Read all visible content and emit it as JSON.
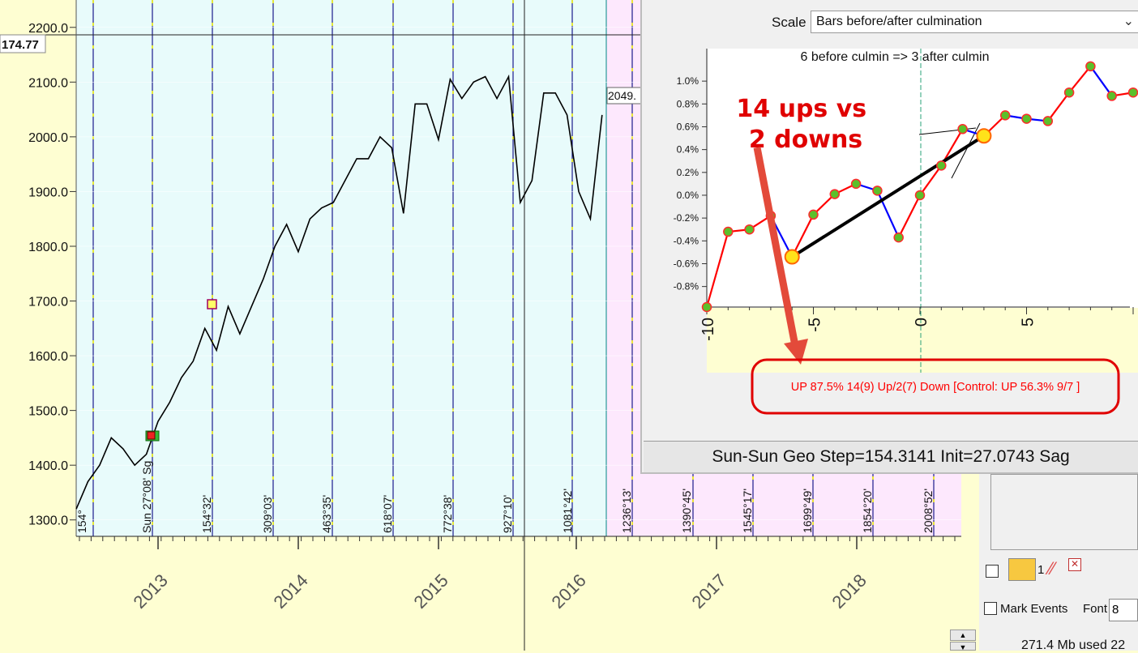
{
  "chart_data": [
    {
      "type": "line",
      "series": [
        {
          "values": [
            {
              "x": "2012-06",
              "y": 1320
            },
            {
              "x": "2012-07",
              "y": 1370
            },
            {
              "x": "2012-08",
              "y": 1400
            },
            {
              "x": "2012-09",
              "y": 1450
            },
            {
              "x": "2012-10",
              "y": 1430
            },
            {
              "x": "2012-11",
              "y": 1400
            },
            {
              "x": "2012-12",
              "y": 1420
            },
            {
              "x": "2013-01",
              "y": 1480
            },
            {
              "x": "2013-02",
              "y": 1515
            },
            {
              "x": "2013-03",
              "y": 1560
            },
            {
              "x": "2013-04",
              "y": 1590
            },
            {
              "x": "2013-05",
              "y": 1650
            },
            {
              "x": "2013-06",
              "y": 1610
            },
            {
              "x": "2013-07",
              "y": 1690
            },
            {
              "x": "2013-08",
              "y": 1640
            },
            {
              "x": "2013-09",
              "y": 1690
            },
            {
              "x": "2013-10",
              "y": 1740
            },
            {
              "x": "2013-11",
              "y": 1800
            },
            {
              "x": "2013-12",
              "y": 1840
            },
            {
              "x": "2014-01",
              "y": 1790
            },
            {
              "x": "2014-02",
              "y": 1850
            },
            {
              "x": "2014-03",
              "y": 1870
            },
            {
              "x": "2014-04",
              "y": 1880
            },
            {
              "x": "2014-05",
              "y": 1920
            },
            {
              "x": "2014-06",
              "y": 1960
            },
            {
              "x": "2014-07",
              "y": 1960
            },
            {
              "x": "2014-08",
              "y": 2000
            },
            {
              "x": "2014-09",
              "y": 1980
            },
            {
              "x": "2014-10",
              "y": 1860
            },
            {
              "x": "2014-11",
              "y": 2060
            },
            {
              "x": "2014-12",
              "y": 2060
            },
            {
              "x": "2015-01",
              "y": 1995
            },
            {
              "x": "2015-02",
              "y": 2105
            },
            {
              "x": "2015-03",
              "y": 2070
            },
            {
              "x": "2015-04",
              "y": 2100
            },
            {
              "x": "2015-05",
              "y": 2110
            },
            {
              "x": "2015-06",
              "y": 2070
            },
            {
              "x": "2015-07",
              "y": 2110
            },
            {
              "x": "2015-08",
              "y": 1880
            },
            {
              "x": "2015-09",
              "y": 1920
            },
            {
              "x": "2015-10",
              "y": 2080
            },
            {
              "x": "2015-11",
              "y": 2080
            },
            {
              "x": "2015-12",
              "y": 2040
            },
            {
              "x": "2016-01",
              "y": 1900
            },
            {
              "x": "2016-02",
              "y": 1850
            },
            {
              "x": "2016-03",
              "y": 2040
            }
          ]
        }
      ],
      "x_tick_labels": [
        "2013",
        "2014",
        "2015",
        "2016",
        "2017",
        "2018"
      ],
      "y_tick_labels": [
        "2200.0",
        "2100.0",
        "2000.0",
        "1900.0",
        "1800.0",
        "1700.0",
        "1600.0",
        "1500.0",
        "1400.0",
        "1300.0"
      ],
      "ylim": [
        1270,
        2250
      ],
      "price_marker": "174.77",
      "last_price_label": "2049.",
      "vertical_line_labels": [
        "154°",
        "Sun 27°08' Sg",
        "154°32'",
        "309°03'",
        "463°35'",
        "618°07'",
        "772°38'",
        "927°10'",
        "1081°42'",
        "1236°13'",
        "1390°45'",
        "1545°17'",
        "1699°49'",
        "1854°20'",
        "2008°52'"
      ],
      "grid": true
    },
    {
      "type": "line",
      "subtitle": "6 before culmin => 3 after culmin",
      "x": [
        -10,
        -9,
        -8,
        -7,
        -6,
        -5,
        -4,
        -3,
        -2,
        -1,
        0,
        1,
        2,
        3,
        4,
        5,
        6,
        7,
        8,
        9,
        10
      ],
      "values": [
        -0.98,
        -0.32,
        -0.3,
        -0.18,
        -0.54,
        -0.17,
        0.01,
        0.1,
        0.04,
        -0.37,
        0.0,
        0.26,
        0.58,
        0.52,
        0.7,
        0.67,
        0.65,
        0.9,
        1.13,
        0.87,
        0.9
      ],
      "x_tick_labels": [
        "-10",
        "-5",
        "0",
        "5"
      ],
      "y_tick_labels": [
        "1.0%",
        "0.8%",
        "0.6%",
        "0.4%",
        "0.2%",
        "0.0%",
        "-0.2%",
        "-0.4%",
        "-0.6%",
        "-0.8%"
      ],
      "ylim": [
        -0.98,
        1.15
      ],
      "xlim": [
        -10,
        10
      ],
      "annotation": "14 ups vs\n2 downs",
      "stat_text": "UP 87.5%  14(9) Up/2(7) Down [Control: UP 56.3%  9/7 ]"
    }
  ],
  "panel": {
    "scale_label": "Scale",
    "scale_value": "Bars before/after culmination",
    "status": "Sun-Sun Geo  Step=154.3141  Init=27.0743 Sag"
  },
  "controls": {
    "mark_events_label": "Mark Events",
    "font_label": "Font",
    "font_value": "8",
    "layer_label": "1",
    "memory_text": "271.4 Mb used 22"
  },
  "colors": {
    "main_bg": "#e8fbfb",
    "future_bg": "#fde8fd",
    "axis_bg": "#fefed2",
    "vline": "#1c1c8c",
    "dash_yellow": "#f2f200",
    "up_color": "#ff0000",
    "down_color": "#0000ff",
    "annotation": "#e00000"
  }
}
